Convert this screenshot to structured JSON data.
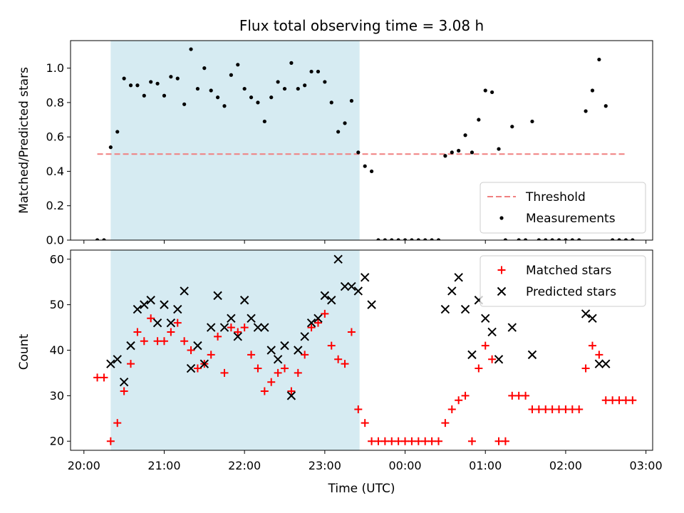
{
  "chart_data": {
    "type": "scatter",
    "title": "Flux total observing time = 3.08 h",
    "xlabel": "Time (UTC)",
    "xtick_labels": [
      "20:00",
      "21:00",
      "22:00",
      "23:00",
      "00:00",
      "01:00",
      "02:00",
      "03:00"
    ],
    "xlim": [
      "19:50",
      "03:05"
    ],
    "shaded_interval": [
      "20:20",
      "23:26"
    ],
    "shade_color": "#add8e6",
    "panels": [
      {
        "ylabel": "Matched/Predicted stars",
        "ylim": [
          0,
          1.16
        ],
        "yticks": [
          0.0,
          0.2,
          0.4,
          0.6,
          0.8,
          1.0
        ],
        "legend": "lower right",
        "threshold": {
          "name": "Threshold",
          "value": 0.5,
          "x_start": "20:10",
          "x_end": "02:45",
          "color": "#f08080",
          "style": "dashed"
        },
        "series": [
          {
            "name": "Measurements",
            "marker": "dot",
            "color": "#000000",
            "points": [
              [
                "20:10",
                0
              ],
              [
                "20:15",
                0
              ],
              [
                "20:20",
                0.54
              ],
              [
                "20:25",
                0.63
              ],
              [
                "20:30",
                0.94
              ],
              [
                "20:35",
                0.9
              ],
              [
                "20:40",
                0.9
              ],
              [
                "20:45",
                0.84
              ],
              [
                "20:50",
                0.92
              ],
              [
                "20:55",
                0.91
              ],
              [
                "21:00",
                0.84
              ],
              [
                "21:05",
                0.95
              ],
              [
                "21:10",
                0.94
              ],
              [
                "21:15",
                0.79
              ],
              [
                "21:20",
                1.11
              ],
              [
                "21:25",
                0.88
              ],
              [
                "21:30",
                1.0
              ],
              [
                "21:35",
                0.87
              ],
              [
                "21:40",
                0.83
              ],
              [
                "21:45",
                0.78
              ],
              [
                "21:50",
                0.96
              ],
              [
                "21:55",
                1.02
              ],
              [
                "22:00",
                0.88
              ],
              [
                "22:05",
                0.83
              ],
              [
                "22:10",
                0.8
              ],
              [
                "22:15",
                0.69
              ],
              [
                "22:20",
                0.83
              ],
              [
                "22:25",
                0.92
              ],
              [
                "22:30",
                0.88
              ],
              [
                "22:35",
                1.03
              ],
              [
                "22:40",
                0.88
              ],
              [
                "22:45",
                0.9
              ],
              [
                "22:50",
                0.98
              ],
              [
                "22:55",
                0.98
              ],
              [
                "23:00",
                0.92
              ],
              [
                "23:05",
                0.8
              ],
              [
                "23:10",
                0.63
              ],
              [
                "23:15",
                0.68
              ],
              [
                "23:20",
                0.81
              ],
              [
                "23:25",
                0.51
              ],
              [
                "23:30",
                0.43
              ],
              [
                "23:35",
                0.4
              ],
              [
                "23:40",
                0
              ],
              [
                "23:45",
                0
              ],
              [
                "23:50",
                0
              ],
              [
                "23:55",
                0
              ],
              [
                "00:00",
                0
              ],
              [
                "00:05",
                0
              ],
              [
                "00:10",
                0
              ],
              [
                "00:15",
                0
              ],
              [
                "00:20",
                0
              ],
              [
                "00:25",
                0
              ],
              [
                "00:30",
                0.49
              ],
              [
                "00:35",
                0.51
              ],
              [
                "00:40",
                0.52
              ],
              [
                "00:45",
                0.61
              ],
              [
                "00:50",
                0.51
              ],
              [
                "00:55",
                0.7
              ],
              [
                "01:00",
                0.87
              ],
              [
                "01:05",
                0.86
              ],
              [
                "01:10",
                0.53
              ],
              [
                "01:15",
                0
              ],
              [
                "01:20",
                0.66
              ],
              [
                "01:25",
                0
              ],
              [
                "01:30",
                0
              ],
              [
                "01:35",
                0.69
              ],
              [
                "01:40",
                0
              ],
              [
                "01:45",
                0
              ],
              [
                "01:50",
                0
              ],
              [
                "01:55",
                0
              ],
              [
                "02:00",
                0
              ],
              [
                "02:05",
                0
              ],
              [
                "02:10",
                0
              ],
              [
                "02:15",
                0.75
              ],
              [
                "02:20",
                0.87
              ],
              [
                "02:25",
                1.05
              ],
              [
                "02:30",
                0.78
              ],
              [
                "02:35",
                0
              ],
              [
                "02:40",
                0
              ],
              [
                "02:45",
                0
              ],
              [
                "02:50",
                0
              ]
            ]
          }
        ]
      },
      {
        "ylabel": "Count",
        "ylim": [
          18,
          62
        ],
        "yticks": [
          20,
          30,
          40,
          50,
          60
        ],
        "legend": "upper right",
        "series": [
          {
            "name": "Matched stars",
            "marker": "plus",
            "color": "#ff0000",
            "points": [
              [
                "20:10",
                34
              ],
              [
                "20:15",
                34
              ],
              [
                "20:20",
                20
              ],
              [
                "20:25",
                24
              ],
              [
                "20:30",
                31
              ],
              [
                "20:35",
                37
              ],
              [
                "20:40",
                44
              ],
              [
                "20:45",
                42
              ],
              [
                "20:50",
                47
              ],
              [
                "20:55",
                42
              ],
              [
                "21:00",
                42
              ],
              [
                "21:05",
                44
              ],
              [
                "21:10",
                46
              ],
              [
                "21:15",
                42
              ],
              [
                "21:20",
                40
              ],
              [
                "21:25",
                36
              ],
              [
                "21:30",
                37
              ],
              [
                "21:35",
                39
              ],
              [
                "21:40",
                43
              ],
              [
                "21:45",
                35
              ],
              [
                "21:50",
                45
              ],
              [
                "21:55",
                44
              ],
              [
                "22:00",
                45
              ],
              [
                "22:05",
                39
              ],
              [
                "22:10",
                36
              ],
              [
                "22:15",
                31
              ],
              [
                "22:20",
                33
              ],
              [
                "22:25",
                35
              ],
              [
                "22:30",
                36
              ],
              [
                "22:35",
                31
              ],
              [
                "22:40",
                35
              ],
              [
                "22:45",
                39
              ],
              [
                "22:50",
                45
              ],
              [
                "22:55",
                46
              ],
              [
                "23:00",
                48
              ],
              [
                "23:05",
                41
              ],
              [
                "23:10",
                38
              ],
              [
                "23:15",
                37
              ],
              [
                "23:20",
                44
              ],
              [
                "23:25",
                27
              ],
              [
                "23:30",
                24
              ],
              [
                "23:35",
                20
              ],
              [
                "23:40",
                20
              ],
              [
                "23:45",
                20
              ],
              [
                "23:50",
                20
              ],
              [
                "23:55",
                20
              ],
              [
                "00:00",
                20
              ],
              [
                "00:05",
                20
              ],
              [
                "00:10",
                20
              ],
              [
                "00:15",
                20
              ],
              [
                "00:20",
                20
              ],
              [
                "00:25",
                20
              ],
              [
                "00:30",
                24
              ],
              [
                "00:35",
                27
              ],
              [
                "00:40",
                29
              ],
              [
                "00:45",
                30
              ],
              [
                "00:50",
                20
              ],
              [
                "00:55",
                36
              ],
              [
                "01:00",
                41
              ],
              [
                "01:05",
                38
              ],
              [
                "01:10",
                20
              ],
              [
                "01:15",
                20
              ],
              [
                "01:20",
                30
              ],
              [
                "01:25",
                30
              ],
              [
                "01:30",
                30
              ],
              [
                "01:35",
                27
              ],
              [
                "01:40",
                27
              ],
              [
                "01:45",
                27
              ],
              [
                "01:50",
                27
              ],
              [
                "01:55",
                27
              ],
              [
                "02:00",
                27
              ],
              [
                "02:05",
                27
              ],
              [
                "02:10",
                27
              ],
              [
                "02:15",
                36
              ],
              [
                "02:20",
                41
              ],
              [
                "02:25",
                39
              ],
              [
                "02:30",
                29
              ],
              [
                "02:35",
                29
              ],
              [
                "02:40",
                29
              ],
              [
                "02:45",
                29
              ],
              [
                "02:50",
                29
              ]
            ]
          },
          {
            "name": "Predicted stars",
            "marker": "x",
            "color": "#000000",
            "points": [
              [
                "20:20",
                37
              ],
              [
                "20:25",
                38
              ],
              [
                "20:30",
                33
              ],
              [
                "20:35",
                41
              ],
              [
                "20:40",
                49
              ],
              [
                "20:45",
                50
              ],
              [
                "20:50",
                51
              ],
              [
                "20:55",
                46
              ],
              [
                "21:00",
                50
              ],
              [
                "21:05",
                46
              ],
              [
                "21:10",
                49
              ],
              [
                "21:15",
                53
              ],
              [
                "21:20",
                36
              ],
              [
                "21:25",
                41
              ],
              [
                "21:30",
                37
              ],
              [
                "21:35",
                45
              ],
              [
                "21:40",
                52
              ],
              [
                "21:45",
                45
              ],
              [
                "21:50",
                47
              ],
              [
                "21:55",
                43
              ],
              [
                "22:00",
                51
              ],
              [
                "22:05",
                47
              ],
              [
                "22:10",
                45
              ],
              [
                "22:15",
                45
              ],
              [
                "22:20",
                40
              ],
              [
                "22:25",
                38
              ],
              [
                "22:30",
                41
              ],
              [
                "22:35",
                30
              ],
              [
                "22:40",
                40
              ],
              [
                "22:45",
                43
              ],
              [
                "22:50",
                46
              ],
              [
                "22:55",
                47
              ],
              [
                "23:00",
                52
              ],
              [
                "23:05",
                51
              ],
              [
                "23:10",
                60
              ],
              [
                "23:15",
                54
              ],
              [
                "23:20",
                54
              ],
              [
                "23:25",
                53
              ],
              [
                "23:30",
                56
              ],
              [
                "23:35",
                50
              ],
              [
                "00:30",
                49
              ],
              [
                "00:35",
                53
              ],
              [
                "00:40",
                56
              ],
              [
                "00:45",
                49
              ],
              [
                "00:50",
                39
              ],
              [
                "00:55",
                51
              ],
              [
                "01:00",
                47
              ],
              [
                "01:05",
                44
              ],
              [
                "01:10",
                38
              ],
              [
                "01:20",
                45
              ],
              [
                "01:35",
                39
              ],
              [
                "02:15",
                48
              ],
              [
                "02:20",
                47
              ],
              [
                "02:25",
                37
              ],
              [
                "02:30",
                37
              ]
            ]
          }
        ]
      }
    ]
  }
}
